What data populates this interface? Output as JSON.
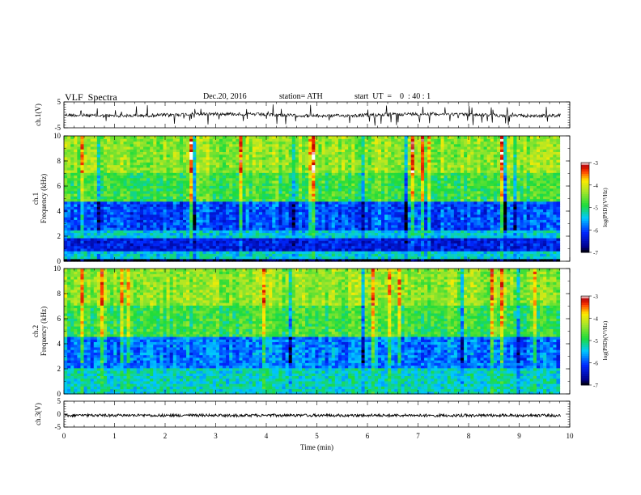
{
  "header": {
    "title": "VLF  Spectra",
    "date": "Dec.20, 2016",
    "station": "station= ATH",
    "start_ut": "start  UT  =    0  : 40 : 1"
  },
  "chart_data": [
    {
      "name": "ch1-waveform",
      "type": "line",
      "ylabel": "ch.1(V)",
      "ylim": [
        -5,
        5
      ],
      "yticks": [
        "5",
        "-5"
      ],
      "xlim": [
        0,
        10
      ],
      "baseline_v": 0.0,
      "color": "#000000"
    },
    {
      "name": "ch1-spectrogram",
      "type": "heatmap",
      "ylabel": "ch.1\nFrequency  (kHz)",
      "ylim": [
        0,
        10
      ],
      "yticks": [
        "0",
        "2",
        "4",
        "6",
        "8",
        "10"
      ],
      "xlim": [
        0,
        10
      ],
      "data_xmax_min": 9.8,
      "colorbar": {
        "label": "log(PSD)(V²/Hz)",
        "range": [
          -7,
          -3
        ],
        "ticks": [
          "-3",
          "-4",
          "-5",
          "-6",
          "-7"
        ]
      },
      "levels_by_band": [
        {
          "f_from": 0.0,
          "f_to": 0.25,
          "level": -7.0
        },
        {
          "f_from": 0.25,
          "f_to": 0.9,
          "level": -5.4
        },
        {
          "f_from": 0.9,
          "f_to": 1.9,
          "level": -6.3
        },
        {
          "f_from": 1.9,
          "f_to": 2.6,
          "level": -5.4
        },
        {
          "f_from": 2.6,
          "f_to": 4.8,
          "level": -6.0
        },
        {
          "f_from": 4.8,
          "f_to": 7.0,
          "level": -4.8
        },
        {
          "f_from": 7.0,
          "f_to": 10.0,
          "level": -4.4
        }
      ]
    },
    {
      "name": "ch2-spectrogram",
      "type": "heatmap",
      "ylabel": "ch.2\nFrequency  (kHz)",
      "ylim": [
        0,
        10
      ],
      "yticks": [
        "0",
        "2",
        "4",
        "6",
        "8",
        "10"
      ],
      "xlim": [
        0,
        10
      ],
      "data_xmax_min": 9.8,
      "colorbar": {
        "label": "log(PSD)(V²/Hz)",
        "range": [
          -7,
          -3
        ],
        "ticks": [
          "-3",
          "-4",
          "-5",
          "-6",
          "-7"
        ]
      },
      "levels_by_band": [
        {
          "f_from": 0.0,
          "f_to": 2.0,
          "level": -5.3
        },
        {
          "f_from": 2.0,
          "f_to": 4.5,
          "level": -5.8
        },
        {
          "f_from": 4.5,
          "f_to": 7.0,
          "level": -4.8
        },
        {
          "f_from": 7.0,
          "f_to": 10.0,
          "level": -4.4
        }
      ]
    },
    {
      "name": "ch3-waveform",
      "type": "line",
      "ylabel": "ch.3(V)",
      "ylim": [
        -5,
        5
      ],
      "yticks": [
        "5",
        "0",
        "-5"
      ],
      "xlim": [
        0,
        10
      ],
      "baseline_v": -0.5,
      "color": "#000000"
    }
  ],
  "xaxis": {
    "label": "Time  (min)",
    "range": [
      0,
      10
    ],
    "ticks": [
      "0",
      "1",
      "2",
      "3",
      "4",
      "5",
      "6",
      "7",
      "8",
      "9",
      "10"
    ]
  }
}
